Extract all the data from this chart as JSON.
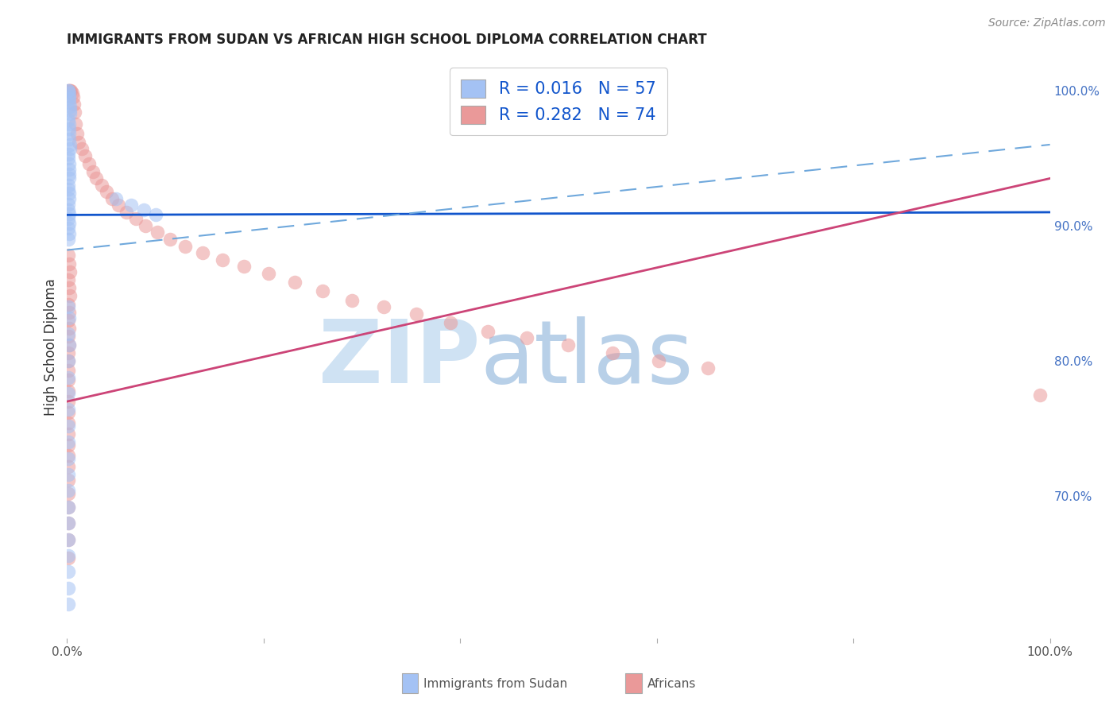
{
  "title": "IMMIGRANTS FROM SUDAN VS AFRICAN HIGH SCHOOL DIPLOMA CORRELATION CHART",
  "source": "Source: ZipAtlas.com",
  "ylabel": "High School Diploma",
  "right_yticks": [
    "70.0%",
    "80.0%",
    "90.0%",
    "100.0%"
  ],
  "right_ytick_vals": [
    0.7,
    0.8,
    0.9,
    1.0
  ],
  "blue_color": "#a4c2f4",
  "pink_color": "#ea9999",
  "blue_line_color": "#1155cc",
  "pink_line_color": "#cc4477",
  "dashed_line_color": "#6fa8dc",
  "watermark_zip": "ZIP",
  "watermark_atlas": "atlas",
  "watermark_color_zip": "#cfe2f3",
  "watermark_color_atlas": "#b8d0e8",
  "xlim": [
    0.0,
    1.0
  ],
  "ylim": [
    0.595,
    1.025
  ],
  "blue_line_y0": 0.908,
  "blue_line_y1": 0.91,
  "pink_line_y0": 0.77,
  "pink_line_y1": 0.935,
  "dashed_line_y0": 0.882,
  "dashed_line_y1": 0.96,
  "blue_x": [
    0.001,
    0.001,
    0.002,
    0.002,
    0.002,
    0.002,
    0.003,
    0.003,
    0.003,
    0.001,
    0.002,
    0.002,
    0.002,
    0.002,
    0.003,
    0.003,
    0.001,
    0.001,
    0.002,
    0.002,
    0.002,
    0.002,
    0.001,
    0.001,
    0.002,
    0.002,
    0.001,
    0.001,
    0.002,
    0.001,
    0.002,
    0.001,
    0.002,
    0.001,
    0.05,
    0.065,
    0.078,
    0.09,
    0.001,
    0.002,
    0.001,
    0.002,
    0.001,
    0.001,
    0.001,
    0.001,
    0.001,
    0.001,
    0.001,
    0.001,
    0.001,
    0.001,
    0.001,
    0.001,
    0.001,
    0.001,
    0.001,
    0.001
  ],
  "blue_y": [
    1.0,
    1.0,
    0.998,
    0.996,
    0.994,
    0.991,
    0.988,
    0.985,
    0.983,
    0.978,
    0.975,
    0.972,
    0.968,
    0.964,
    0.96,
    0.957,
    0.953,
    0.95,
    0.946,
    0.942,
    0.938,
    0.935,
    0.93,
    0.927,
    0.924,
    0.92,
    0.916,
    0.912,
    0.909,
    0.905,
    0.902,
    0.898,
    0.894,
    0.89,
    0.92,
    0.915,
    0.912,
    0.908,
    0.84,
    0.832,
    0.82,
    0.812,
    0.8,
    0.788,
    0.776,
    0.764,
    0.752,
    0.74,
    0.728,
    0.716,
    0.704,
    0.692,
    0.68,
    0.668,
    0.656,
    0.644,
    0.632,
    0.62
  ],
  "pink_x": [
    0.001,
    0.002,
    0.003,
    0.004,
    0.005,
    0.006,
    0.007,
    0.008,
    0.009,
    0.01,
    0.012,
    0.015,
    0.018,
    0.022,
    0.026,
    0.03,
    0.035,
    0.04,
    0.046,
    0.052,
    0.06,
    0.07,
    0.08,
    0.092,
    0.105,
    0.12,
    0.138,
    0.158,
    0.18,
    0.205,
    0.232,
    0.26,
    0.29,
    0.322,
    0.355,
    0.39,
    0.428,
    0.468,
    0.51,
    0.555,
    0.602,
    0.652,
    0.99,
    0.001,
    0.002,
    0.003,
    0.001,
    0.002,
    0.003,
    0.001,
    0.002,
    0.001,
    0.002,
    0.001,
    0.002,
    0.001,
    0.001,
    0.001,
    0.001,
    0.001,
    0.001,
    0.001,
    0.001,
    0.001,
    0.001,
    0.001,
    0.001,
    0.001,
    0.001,
    0.001,
    0.001,
    0.001,
    0.001
  ],
  "pink_y": [
    1.0,
    1.0,
    1.0,
    1.0,
    0.998,
    0.995,
    0.99,
    0.984,
    0.975,
    0.968,
    0.962,
    0.957,
    0.952,
    0.946,
    0.94,
    0.935,
    0.93,
    0.925,
    0.92,
    0.915,
    0.91,
    0.905,
    0.9,
    0.895,
    0.89,
    0.885,
    0.88,
    0.875,
    0.87,
    0.865,
    0.858,
    0.852,
    0.845,
    0.84,
    0.835,
    0.828,
    0.822,
    0.817,
    0.812,
    0.806,
    0.8,
    0.795,
    0.775,
    0.878,
    0.872,
    0.866,
    0.86,
    0.854,
    0.848,
    0.842,
    0.836,
    0.83,
    0.824,
    0.818,
    0.812,
    0.806,
    0.8,
    0.793,
    0.786,
    0.778,
    0.77,
    0.762,
    0.754,
    0.746,
    0.738,
    0.73,
    0.722,
    0.712,
    0.702,
    0.692,
    0.68,
    0.668,
    0.654
  ]
}
